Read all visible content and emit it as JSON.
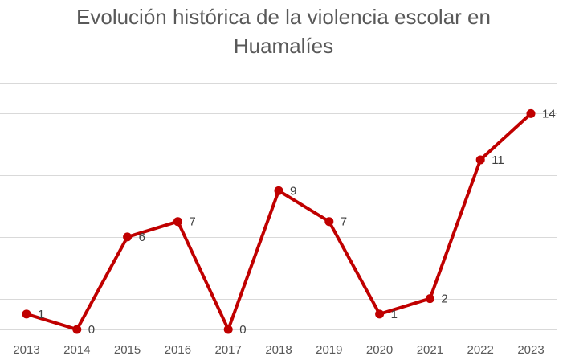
{
  "chart_data": {
    "type": "line",
    "title_lines": [
      "Evolución histórica de la violencia escolar en",
      "Huamalíes"
    ],
    "categories": [
      "2013",
      "2014",
      "2015",
      "2016",
      "2017",
      "2018",
      "2019",
      "2020",
      "2021",
      "2022",
      "2023"
    ],
    "series": [
      {
        "values": [
          1,
          0,
          6,
          7,
          0,
          9,
          7,
          1,
          2,
          11,
          14
        ],
        "color": "#c00000"
      }
    ],
    "ylim": [
      0,
      16
    ],
    "y_gridline_step": 2,
    "y_tick_labels_shown": false,
    "grid": true,
    "legend": "none",
    "data_labels": true,
    "markers": "circle"
  }
}
